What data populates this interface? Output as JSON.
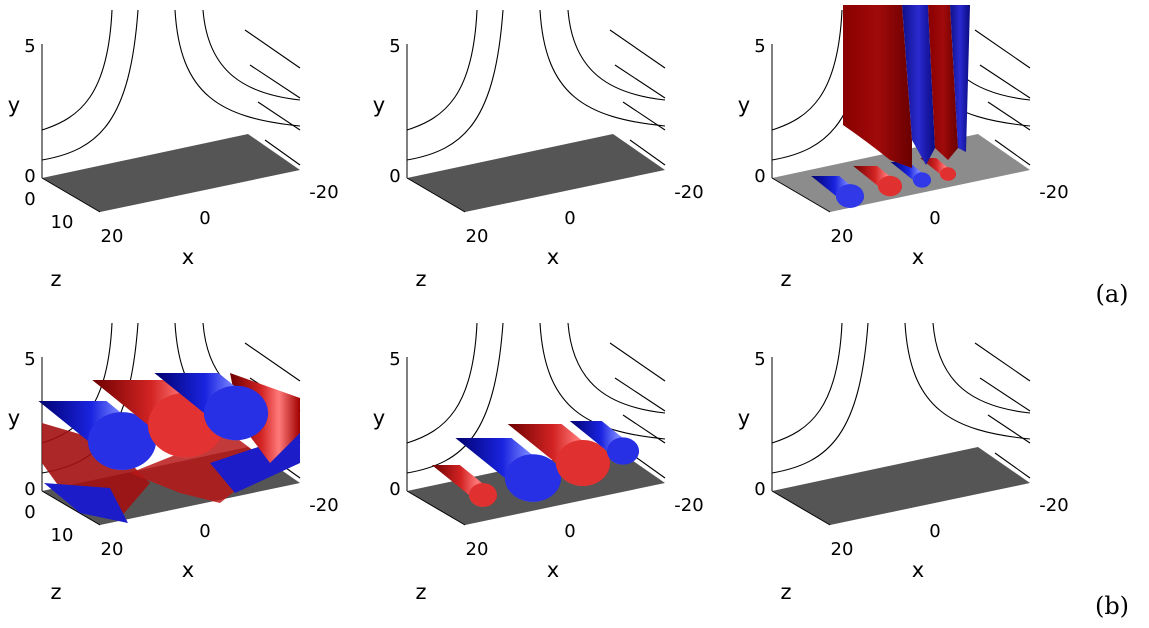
{
  "figure": {
    "row_labels": [
      "(a)",
      "(b)"
    ],
    "axes": {
      "x_label": "x",
      "y_label": "y",
      "z_label": "z",
      "x_ticks": [
        "20",
        "0",
        "-20"
      ],
      "y_ticks": [
        "5",
        "0"
      ],
      "z_ticks": [
        "0",
        "10",
        "20"
      ]
    },
    "panels": [
      {
        "row": 0,
        "col": 0,
        "content": "empty",
        "show_z_ticks": true
      },
      {
        "row": 0,
        "col": 1,
        "content": "empty",
        "show_z_ticks": false
      },
      {
        "row": 0,
        "col": 2,
        "content": "tall-sheets",
        "show_z_ticks": false
      },
      {
        "row": 1,
        "col": 0,
        "content": "big-cylinders",
        "show_z_ticks": true
      },
      {
        "row": 1,
        "col": 1,
        "content": "small-cylinders",
        "show_z_ticks": false
      },
      {
        "row": 1,
        "col": 2,
        "content": "empty",
        "show_z_ticks": false
      }
    ],
    "colors": {
      "red": "#c0181c",
      "blue": "#1a1fd6",
      "floor": "#555555",
      "floor_light": "#8c8c8c"
    }
  }
}
